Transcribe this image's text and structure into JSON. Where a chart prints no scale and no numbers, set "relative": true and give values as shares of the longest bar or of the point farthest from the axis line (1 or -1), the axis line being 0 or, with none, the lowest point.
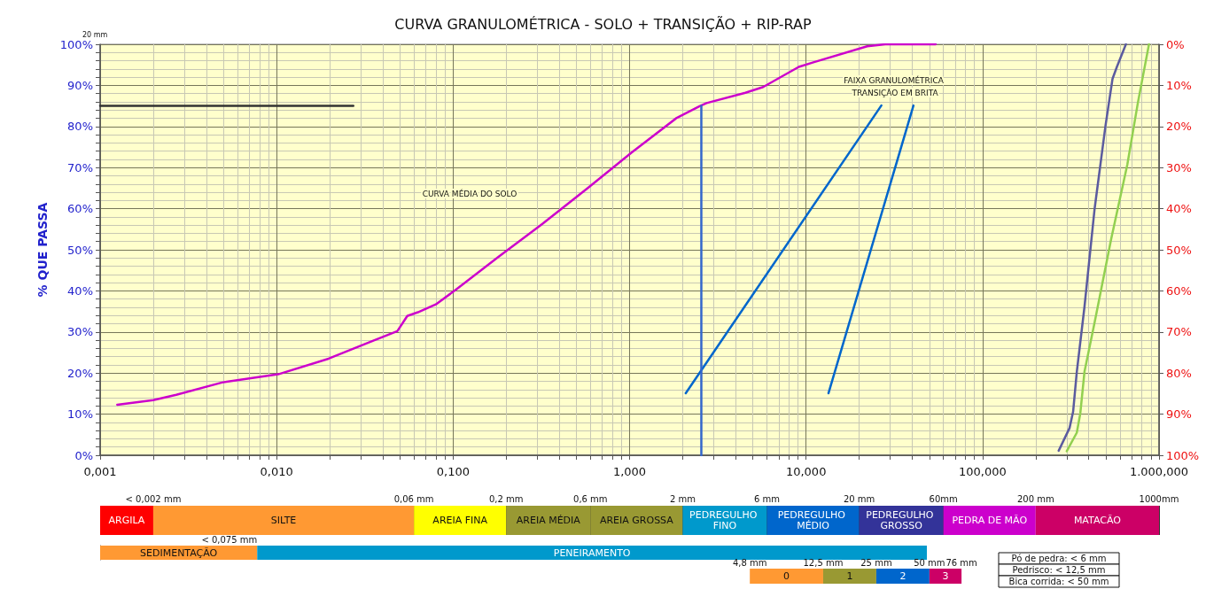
{
  "chart_data": [
    {
      "type": "line",
      "title": "CURVA GRANULOMÉTRICA - SOLO + TRANSIÇÃO + RIP-RAP",
      "subtitle": "20 mm",
      "ylabel": "% QUE PASSA",
      "log": "x",
      "grid": true,
      "marker": "none",
      "line_style": "solid",
      "xlim": [
        0.001,
        1000
      ],
      "xticks": [
        {
          "value": 0.001,
          "label": "0,001"
        },
        {
          "value": 0.002,
          "label": null
        },
        {
          "value": 0.003,
          "label": null
        },
        {
          "value": 0.004,
          "label": null
        },
        {
          "value": 0.005,
          "label": null
        },
        {
          "value": 0.006,
          "label": null
        },
        {
          "value": 0.007,
          "label": null
        },
        {
          "value": 0.008,
          "label": null
        },
        {
          "value": 0.009,
          "label": null
        },
        {
          "value": 0.01,
          "label": "0,010"
        },
        {
          "value": 0.02,
          "label": null
        },
        {
          "value": 0.03,
          "label": null
        },
        {
          "value": 0.04,
          "label": null
        },
        {
          "value": 0.05,
          "label": null
        },
        {
          "value": 0.06,
          "label": null
        },
        {
          "value": 0.07,
          "label": null
        },
        {
          "value": 0.08,
          "label": null
        },
        {
          "value": 0.09,
          "label": null
        },
        {
          "value": 0.1,
          "label": "0,100"
        },
        {
          "value": 0.2,
          "label": null
        },
        {
          "value": 0.3,
          "label": null
        },
        {
          "value": 0.4,
          "label": null
        },
        {
          "value": 0.5,
          "label": null
        },
        {
          "value": 0.6,
          "label": null
        },
        {
          "value": 0.7,
          "label": null
        },
        {
          "value": 0.8,
          "label": null
        },
        {
          "value": 0.9,
          "label": null
        },
        {
          "value": 1,
          "label": "1,000"
        },
        {
          "value": 2,
          "label": null
        },
        {
          "value": 3,
          "label": null
        },
        {
          "value": 4,
          "label": null
        },
        {
          "value": 5,
          "label": null
        },
        {
          "value": 6,
          "label": null
        },
        {
          "value": 7,
          "label": null
        },
        {
          "value": 8,
          "label": null
        },
        {
          "value": 9,
          "label": null
        },
        {
          "value": 10,
          "label": "10,000"
        },
        {
          "value": 20,
          "label": null
        },
        {
          "value": 30,
          "label": null
        },
        {
          "value": 40,
          "label": null
        },
        {
          "value": 50,
          "label": null
        },
        {
          "value": 60,
          "label": null
        },
        {
          "value": 70,
          "label": null
        },
        {
          "value": 80,
          "label": null
        },
        {
          "value": 90,
          "label": null
        },
        {
          "value": 100,
          "label": "100,000"
        },
        {
          "value": 200,
          "label": null
        },
        {
          "value": 300,
          "label": null
        },
        {
          "value": 400,
          "label": null
        },
        {
          "value": 500,
          "label": null
        },
        {
          "value": 600,
          "label": null
        },
        {
          "value": 700,
          "label": null
        },
        {
          "value": 800,
          "label": null
        },
        {
          "value": 900,
          "label": null
        },
        {
          "value": 1000,
          "label": "1.000,000"
        }
      ],
      "ylim": [
        0,
        100
      ],
      "yticks": [
        {
          "value": 0,
          "label": "0%"
        },
        {
          "value": 2,
          "label": null
        },
        {
          "value": 4,
          "label": null
        },
        {
          "value": 6,
          "label": null
        },
        {
          "value": 8,
          "label": null
        },
        {
          "value": 10,
          "label": "10%"
        },
        {
          "value": 12,
          "label": null
        },
        {
          "value": 14,
          "label": null
        },
        {
          "value": 16,
          "label": null
        },
        {
          "value": 18,
          "label": null
        },
        {
          "value": 20,
          "label": "20%"
        },
        {
          "value": 22,
          "label": null
        },
        {
          "value": 24,
          "label": null
        },
        {
          "value": 26,
          "label": null
        },
        {
          "value": 28,
          "label": null
        },
        {
          "value": 30,
          "label": "30%"
        },
        {
          "value": 32,
          "label": null
        },
        {
          "value": 34,
          "label": null
        },
        {
          "value": 36,
          "label": null
        },
        {
          "value": 38,
          "label": null
        },
        {
          "value": 40,
          "label": "40%"
        },
        {
          "value": 42,
          "label": null
        },
        {
          "value": 44,
          "label": null
        },
        {
          "value": 46,
          "label": null
        },
        {
          "value": 48,
          "label": null
        },
        {
          "value": 50,
          "label": "50%"
        },
        {
          "value": 52,
          "label": null
        },
        {
          "value": 54,
          "label": null
        },
        {
          "value": 56,
          "label": null
        },
        {
          "value": 58,
          "label": null
        },
        {
          "value": 60,
          "label": "60%"
        },
        {
          "value": 62,
          "label": null
        },
        {
          "value": 64,
          "label": null
        },
        {
          "value": 66,
          "label": null
        },
        {
          "value": 68,
          "label": null
        },
        {
          "value": 70,
          "label": "70%"
        },
        {
          "value": 72,
          "label": null
        },
        {
          "value": 74,
          "label": null
        },
        {
          "value": 76,
          "label": null
        },
        {
          "value": 78,
          "label": null
        },
        {
          "value": 80,
          "label": "80%"
        },
        {
          "value": 82,
          "label": null
        },
        {
          "value": 84,
          "label": null
        },
        {
          "value": 86,
          "label": null
        },
        {
          "value": 88,
          "label": null
        },
        {
          "value": 90,
          "label": "90%"
        },
        {
          "value": 92,
          "label": null
        },
        {
          "value": 94,
          "label": null
        },
        {
          "value": 96,
          "label": null
        },
        {
          "value": 98,
          "label": null
        },
        {
          "value": 100,
          "label": "100%"
        }
      ],
      "y2lim": [
        100,
        0
      ],
      "y2ticks": [
        {
          "value": 0,
          "label": "0%"
        },
        {
          "value": 10,
          "label": "10%"
        },
        {
          "value": 20,
          "label": "20%"
        },
        {
          "value": 30,
          "label": "30%"
        },
        {
          "value": 40,
          "label": "40%"
        },
        {
          "value": 50,
          "label": "50%"
        },
        {
          "value": 60,
          "label": "60%"
        },
        {
          "value": 70,
          "label": "70%"
        },
        {
          "value": 80,
          "label": "80%"
        },
        {
          "value": 90,
          "label": "90%"
        },
        {
          "value": 100,
          "label": "100%"
        }
      ],
      "series": [
        {
          "color": "#cc00cc",
          "x": [
            0.00125,
            0.002,
            0.0027,
            0.0049,
            0.0102,
            0.0197,
            0.0353,
            0.0483,
            0.055,
            0.0632,
            0.0798,
            0.103,
            0.18,
            0.323,
            0.578,
            1.03,
            1.85,
            2.48,
            2.73,
            4.53,
            5.71,
            9.1,
            11,
            22.2,
            28.1,
            54.2
          ],
          "values": [
            12.3,
            13.4,
            14.7,
            17.7,
            19.7,
            23.5,
            27.9,
            30.2,
            33.9,
            34.8,
            36.7,
            40.2,
            48.2,
            56.4,
            65.0,
            73.7,
            82.1,
            84.9,
            85.7,
            88.2,
            89.6,
            94.5,
            95.6,
            99.5,
            100,
            100
          ]
        },
        {
          "color": "#0066cc",
          "x": [
            2.08,
            26.7
          ],
          "values": [
            15.1,
            85.1
          ]
        },
        {
          "color": "#0066cc",
          "x": [
            13.4,
            40.6
          ],
          "values": [
            15.1,
            85.1
          ]
        },
        {
          "color": "#5b5b9f",
          "x": [
            270,
            311,
            326,
            342,
            378,
            431,
            497,
            545,
            577,
            649
          ],
          "values": [
            1.1,
            6.6,
            10.6,
            20.3,
            36.1,
            59.8,
            80.1,
            91.6,
            94.5,
            100
          ]
        },
        {
          "color": "#92d050",
          "x": [
            300,
            342,
            358,
            378,
            431,
            536,
            661,
            759,
            877
          ],
          "values": [
            1,
            5.5,
            10.2,
            20.3,
            32.2,
            52.7,
            70.7,
            85.8,
            100
          ]
        },
        {
          "color": "#3366cc",
          "x": [
            2.55,
            2.55
          ],
          "values": [
            85,
            0
          ]
        },
        {
          "color": "#333333",
          "x": [
            0.001,
            0.0272
          ],
          "values": [
            85,
            85
          ]
        }
      ],
      "annotations": [
        "CURVA MÉDIA DO SOLO",
        "FAIXA GRANULOMÉTRICA TRANSIÇÃO EM BRITA"
      ]
    },
    {
      "type": "bar",
      "orientation": "horizontal",
      "log": "x",
      "xlim": [
        0.001,
        1000
      ],
      "tick_labels": "x",
      "categories": [
        null
      ],
      "xticks": [
        {
          "value": 0.002,
          "label": "< 0,002 mm"
        },
        {
          "value": 0.06,
          "label": "0,06 mm"
        },
        {
          "value": 0.2,
          "label": "0,2 mm"
        },
        {
          "value": 0.6,
          "label": "0,6 mm"
        },
        {
          "value": 2,
          "label": "2 mm"
        },
        {
          "value": 6,
          "label": "6 mm"
        },
        {
          "value": 20,
          "label": "20 mm"
        },
        {
          "value": 60,
          "label": "60mm"
        },
        {
          "value": 200,
          "label": "200 mm"
        },
        {
          "value": 1000,
          "label": "1000mm"
        }
      ],
      "series": [
        {
          "name": "ARGILA",
          "color": "#ff0000",
          "base": [
            0.001
          ],
          "values": [
            0.001
          ]
        },
        {
          "name": "SILTE",
          "color": "#ff9933",
          "base": [
            0.002
          ],
          "values": [
            0.058
          ]
        },
        {
          "name": "AREIA FINA",
          "color": "#ffff00",
          "base": [
            0.06
          ],
          "values": [
            0.14
          ]
        },
        {
          "name": "AREIA MÉDIA",
          "color": "#999933",
          "base": [
            0.2
          ],
          "values": [
            0.4
          ]
        },
        {
          "name": "AREIA GROSSA",
          "color": "#999933",
          "base": [
            0.6
          ],
          "values": [
            1.4
          ]
        },
        {
          "name": "PEDREGULHO FINO",
          "color": "#0099cc",
          "base": [
            2
          ],
          "values": [
            4
          ]
        },
        {
          "name": "PEDREGULHO MÉDIO",
          "color": "#0066cc",
          "base": [
            6
          ],
          "values": [
            14
          ]
        },
        {
          "name": "PEDREGULHO GROSSO",
          "color": "#333399",
          "base": [
            20
          ],
          "values": [
            40
          ]
        },
        {
          "name": "PEDRA DE MÃO",
          "color": "#cc00cc",
          "base": [
            60
          ],
          "values": [
            140
          ]
        },
        {
          "name": "MATACÃO",
          "color": "#cc0066",
          "base": [
            200
          ],
          "values": [
            800
          ]
        }
      ]
    },
    {
      "type": "bar",
      "orientation": "horizontal",
      "relative": true,
      "stacked": true,
      "categories": [
        null
      ],
      "series": [
        {
          "name": "SEDIMENTAÇÃO",
          "color": "#ff9933",
          "values": [
            0.19
          ]
        },
        {
          "name": "PENEIRAMENTO",
          "color": "#0099cc",
          "values": [
            0.81
          ]
        }
      ],
      "annotations": [
        "< 0,075 mm"
      ]
    },
    {
      "type": "bar",
      "orientation": "horizontal",
      "log": "x",
      "xlim": [
        4.8,
        76
      ],
      "tick_labels": "x",
      "categories": [
        null
      ],
      "xticks": [
        {
          "value": 4.8,
          "label": "4,8 mm"
        },
        {
          "value": 12.5,
          "label": "12,5 mm"
        },
        {
          "value": 25,
          "label": "25 mm"
        },
        {
          "value": 50,
          "label": "50 mm"
        },
        {
          "value": 76,
          "label": "76 mm"
        }
      ],
      "series": [
        {
          "name": "0",
          "color": "#ff9933",
          "base": [
            4.8
          ],
          "values": [
            7.7
          ]
        },
        {
          "name": "1",
          "color": "#999933",
          "base": [
            12.5
          ],
          "values": [
            12.5
          ]
        },
        {
          "name": "2",
          "color": "#0066cc",
          "base": [
            25
          ],
          "values": [
            25
          ]
        },
        {
          "name": "3",
          "color": "#cc0066",
          "base": [
            50
          ],
          "values": [
            26
          ]
        }
      ]
    },
    {
      "type": "other",
      "annotations": [
        "Pó de pedra: < 6 mm",
        "Pedrisco: < 12,5 mm",
        "Bica corrida: < 50 mm"
      ]
    }
  ]
}
